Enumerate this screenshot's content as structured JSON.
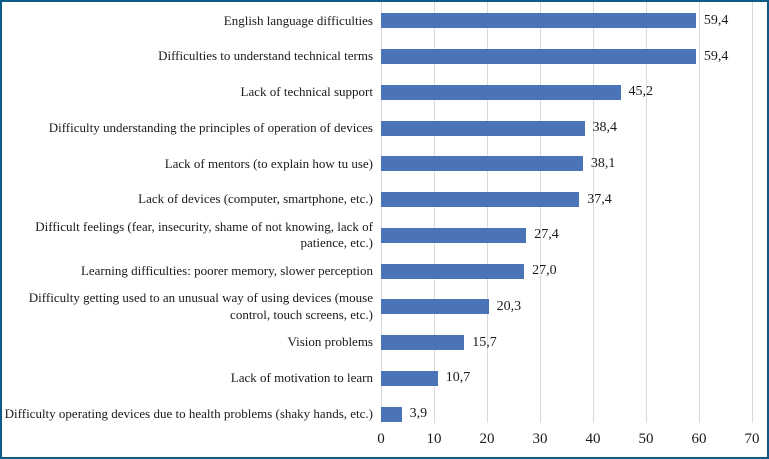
{
  "chart_data": {
    "type": "bar",
    "orientation": "horizontal",
    "title": "",
    "xlabel": "",
    "ylabel": "",
    "categories": [
      "English language difficulties",
      "Difficulties to understand technical terms",
      "Lack of technical support",
      "Difficulty understanding the principles of operation of devices",
      "Lack of mentors (to explain how tu use)",
      "Lack of devices (computer,  smartphone, etc.)",
      "Difficult feelings  (fear, insecurity, shame of not knowing, lack of patience, etc.)",
      "Learning difficulties: poorer memory, slower perception",
      "Difficulty getting used to an unusual way of using devices (mouse control, touch screens, etc.)",
      "Vision problems",
      "Lack of motivation to learn",
      "Difficulty operating devices due to health problems (shaky hands, etc.)"
    ],
    "values": [
      59.4,
      59.4,
      45.2,
      38.4,
      38.1,
      37.4,
      27.4,
      27.0,
      20.3,
      15.7,
      10.7,
      3.9
    ],
    "value_labels": [
      "59,4",
      "59,4",
      "45,2",
      "38,4",
      "38,1",
      "37,4",
      "27,4",
      "27,0",
      "20,3",
      "15,7",
      "10,7",
      "3,9"
    ],
    "xlim": [
      0,
      70
    ],
    "x_ticks": [
      0,
      10,
      20,
      30,
      40,
      50,
      60,
      70
    ],
    "grid": "vertical-only",
    "legend": "none",
    "decimal_separator": ",",
    "bar_color": "#4b73b8",
    "gridline_color": "#d9d9d9",
    "frame_border_color": "#0d5c84",
    "text_color": "#1a1a1a"
  }
}
